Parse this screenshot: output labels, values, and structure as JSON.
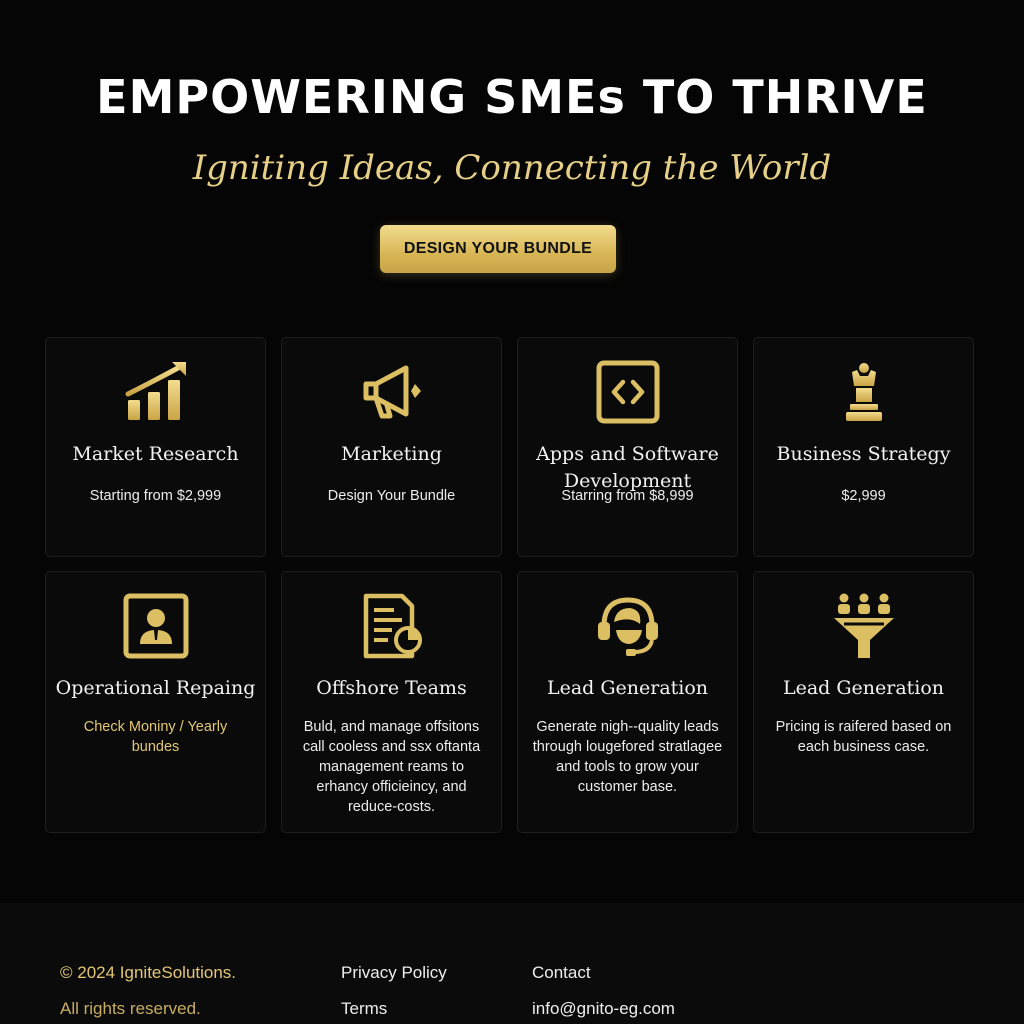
{
  "hero": {
    "title": "EMPOWERING SMEs TO THRIVE",
    "subtitle": "Igniting Ideas, Connecting the World",
    "cta_label": "DESIGN YOUR BUNDLE"
  },
  "services": [
    {
      "icon": "bar-chart-growth-icon",
      "title": "Market Research",
      "desc": "Starting from $2,999"
    },
    {
      "icon": "megaphone-icon",
      "title": "Marketing",
      "desc": "Design Your Bundle"
    },
    {
      "icon": "code-brackets-icon",
      "title": "Apps and Software Development",
      "desc": "Starring from $8,999"
    },
    {
      "icon": "chess-piece-icon",
      "title": "Business Strategy",
      "desc": "$2,999"
    },
    {
      "icon": "user-portrait-icon",
      "title": "Operational Repaing",
      "desc": "Check Moniny / Yearly bundes"
    },
    {
      "icon": "document-chart-icon",
      "title": "Offshore Teams",
      "desc": "Buld, and manage offsitons call cooless and ssx oftanta management reams to erhancy officieincy, and reduce-costs."
    },
    {
      "icon": "headset-support-icon",
      "title": "Lead Generation",
      "desc": "Generate nigh--quality leads through lougefored stratlagee and tools to grow your customer base."
    },
    {
      "icon": "lead-funnel-icon",
      "title": "Lead Generation",
      "desc": "Pricing is raifered based on each business case."
    }
  ],
  "footer": {
    "copyright": "© 2024 IgniteSolutions.",
    "rights": "All rights reserved.",
    "privacy": "Privacy Policy",
    "terms": "Terms",
    "contact": "Contact",
    "email": "info@gnito-eg.com"
  },
  "colors": {
    "background": "#050505",
    "gold": "#e3c774",
    "card": "#0a0a0a"
  }
}
